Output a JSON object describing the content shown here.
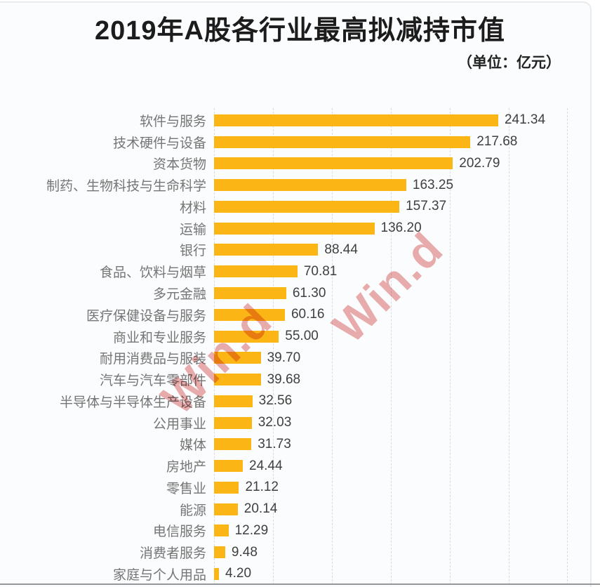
{
  "title": "2019年A股各行业最高拟减持市值",
  "unit_label": "（单位：亿元）",
  "watermark": {
    "text": "Win.d",
    "color": "#d95c5c"
  },
  "colors": {
    "bar": "#FBB615",
    "category_label": "#757575",
    "value_label": "#3f3f3f",
    "gridline": "#d9dbe0",
    "baseline": "#95979c"
  },
  "chart_data": {
    "type": "bar",
    "orientation": "horizontal",
    "title": "2019年A股各行业最高拟减持市值",
    "subtitle": "（单位：亿元）",
    "unit": "亿元",
    "xlabel": "",
    "ylabel": "",
    "xlim": [
      0,
      300
    ],
    "gridline_step": 50,
    "grid": "vertical-dashed",
    "legend": "none",
    "value_labels_shown": true,
    "categories": [
      "软件与服务",
      "技术硬件与设备",
      "资本货物",
      "制药、生物科技与生命科学",
      "材料",
      "运输",
      "银行",
      "食品、饮料与烟草",
      "多元金融",
      "医疗保健设备与服务",
      "商业和专业服务",
      "耐用消费品与服装",
      "汽车与汽车零部件",
      "半导体与半导体生产设备",
      "公用事业",
      "媒体",
      "房地产",
      "零售业",
      "能源",
      "电信服务",
      "消费者服务",
      "家庭与个人用品"
    ],
    "values": [
      241.34,
      217.68,
      202.79,
      163.25,
      157.37,
      136.2,
      88.44,
      70.81,
      61.3,
      60.16,
      55.0,
      39.7,
      39.68,
      32.56,
      32.03,
      31.73,
      24.44,
      21.12,
      20.14,
      12.29,
      9.48,
      4.2
    ]
  }
}
